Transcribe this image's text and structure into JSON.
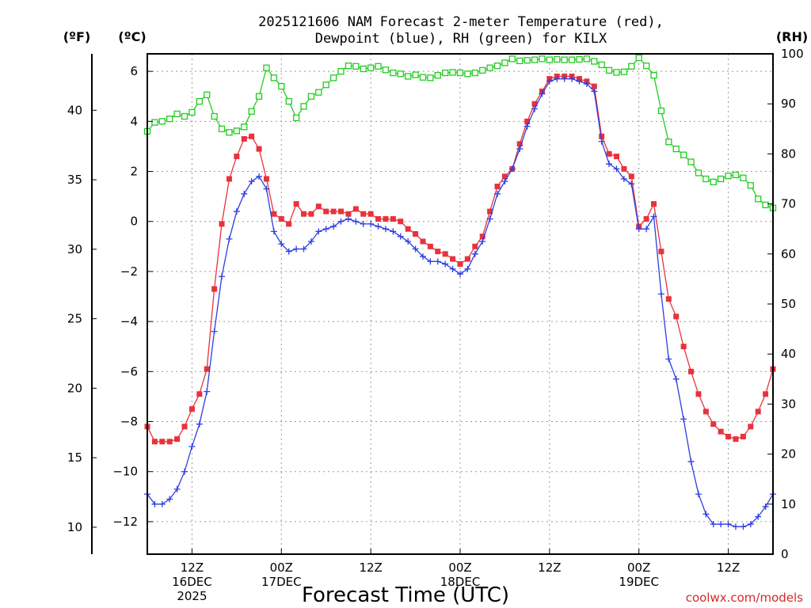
{
  "chart_data": {
    "type": "line",
    "title_line1": "2025121606 NAM Forecast 2-meter Temperature (red),",
    "title_line2": "Dewpoint (blue), RH (green) for KILX",
    "xlabel": "Forecast Time (UTC)",
    "credit": "coolwx.com/models",
    "unit_left_f": "(ºF)",
    "unit_left_c": "(ºC)",
    "unit_right": "(RH)",
    "x_hour_start": 6,
    "x_hour_end": 90,
    "x_ticks": [
      {
        "hour": 12,
        "lines": [
          "12Z",
          "16DEC",
          "2025"
        ]
      },
      {
        "hour": 24,
        "lines": [
          "00Z",
          "17DEC"
        ]
      },
      {
        "hour": 36,
        "lines": [
          "12Z"
        ]
      },
      {
        "hour": 48,
        "lines": [
          "00Z",
          "18DEC"
        ]
      },
      {
        "hour": 60,
        "lines": [
          "12Z"
        ]
      },
      {
        "hour": 72,
        "lines": [
          "00Z",
          "19DEC"
        ]
      },
      {
        "hour": 84,
        "lines": [
          "12Z"
        ]
      }
    ],
    "y_celsius_range": [
      -13.3,
      6.7
    ],
    "y_celsius_ticks": [
      -12,
      -10,
      -8,
      -6,
      -4,
      -2,
      0,
      2,
      4,
      6
    ],
    "y_celsius_labels": [
      "−12",
      "−10",
      "−8",
      "−6",
      "−4",
      "−2",
      "0",
      "2",
      "4",
      "6"
    ],
    "y_fahrenheit_ticks": [
      10,
      15,
      20,
      25,
      30,
      35,
      40
    ],
    "y_rh_range": [
      0,
      100
    ],
    "y_rh_ticks": [
      0,
      10,
      20,
      30,
      40,
      50,
      60,
      70,
      80,
      90,
      100
    ],
    "series": [
      {
        "color": "#e8323c",
        "marker": "filled-square",
        "values": [
          -8.2,
          -8.8,
          -8.8,
          -8.8,
          -8.7,
          -8.2,
          -7.5,
          -6.9,
          -5.9,
          -2.7,
          -0.1,
          1.7,
          2.6,
          3.3,
          3.4,
          2.9,
          1.7,
          0.3,
          0.1,
          -0.1,
          0.7,
          0.3,
          0.3,
          0.6,
          0.4,
          0.4,
          0.4,
          0.3,
          0.5,
          0.3,
          0.3,
          0.1,
          0.1,
          0.1,
          0.0,
          -0.3,
          -0.5,
          -0.8,
          -1.0,
          -1.2,
          -1.3,
          -1.5,
          -1.7,
          -1.5,
          -1.0,
          -0.6,
          0.4,
          1.4,
          1.8,
          2.1,
          3.1,
          4.0,
          4.7,
          5.2,
          5.7,
          5.8,
          5.8,
          5.8,
          5.7,
          5.6,
          5.4,
          3.4,
          2.7,
          2.6,
          2.1,
          1.8,
          -0.2,
          0.1,
          0.7,
          -1.2,
          -3.1,
          -3.8,
          -5.0,
          -6.0,
          -6.9,
          -7.6,
          -8.1,
          -8.4,
          -8.6,
          -8.7,
          -8.6,
          -8.2,
          -7.6,
          -6.9,
          -5.9
        ]
      },
      {
        "color": "#2d3fe0",
        "marker": "plus",
        "values": [
          -10.9,
          -11.3,
          -11.3,
          -11.1,
          -10.7,
          -10.0,
          -9.0,
          -8.1,
          -6.8,
          -4.4,
          -2.2,
          -0.7,
          0.4,
          1.1,
          1.6,
          1.8,
          1.3,
          -0.4,
          -0.9,
          -1.2,
          -1.1,
          -1.1,
          -0.8,
          -0.4,
          -0.3,
          -0.2,
          0.0,
          0.1,
          0.0,
          -0.1,
          -0.1,
          -0.2,
          -0.3,
          -0.4,
          -0.6,
          -0.8,
          -1.1,
          -1.4,
          -1.6,
          -1.6,
          -1.7,
          -1.9,
          -2.1,
          -1.9,
          -1.3,
          -0.8,
          0.1,
          1.1,
          1.6,
          2.1,
          2.9,
          3.8,
          4.5,
          5.1,
          5.6,
          5.7,
          5.7,
          5.7,
          5.6,
          5.5,
          5.2,
          3.2,
          2.3,
          2.1,
          1.7,
          1.5,
          -0.3,
          -0.3,
          0.2,
          -2.9,
          -5.5,
          -6.3,
          -7.9,
          -9.6,
          -10.9,
          -11.7,
          -12.1,
          -12.1,
          -12.1,
          -12.2,
          -12.2,
          -12.1,
          -11.8,
          -11.4,
          -10.9
        ]
      },
      {
        "color": "#22cc22",
        "marker": "open-square",
        "values": [
          84.5,
          86.3,
          86.5,
          87.0,
          88.0,
          87.5,
          88.3,
          90.5,
          91.8,
          87.5,
          85.0,
          84.3,
          84.6,
          85.4,
          88.5,
          91.5,
          97.2,
          95.2,
          93.5,
          90.5,
          87.2,
          89.5,
          91.5,
          92.3,
          93.8,
          95.2,
          96.5,
          97.6,
          97.5,
          97.0,
          97.2,
          97.5,
          96.8,
          96.2,
          96.0,
          95.5,
          95.8,
          95.3,
          95.2,
          95.7,
          96.2,
          96.3,
          96.2,
          96.0,
          96.2,
          96.7,
          97.2,
          97.6,
          98.2,
          99.0,
          98.6,
          98.7,
          98.8,
          99.0,
          98.8,
          98.9,
          98.8,
          98.8,
          98.9,
          99.0,
          98.5,
          97.8,
          96.7,
          96.3,
          96.4,
          97.5,
          99.2,
          97.6,
          95.7,
          88.6,
          82.4,
          81.0,
          79.8,
          78.4,
          76.2,
          75.0,
          74.4,
          75.0,
          75.6,
          75.8,
          75.2,
          73.7,
          71.0,
          69.8,
          69.2
        ]
      }
    ]
  }
}
